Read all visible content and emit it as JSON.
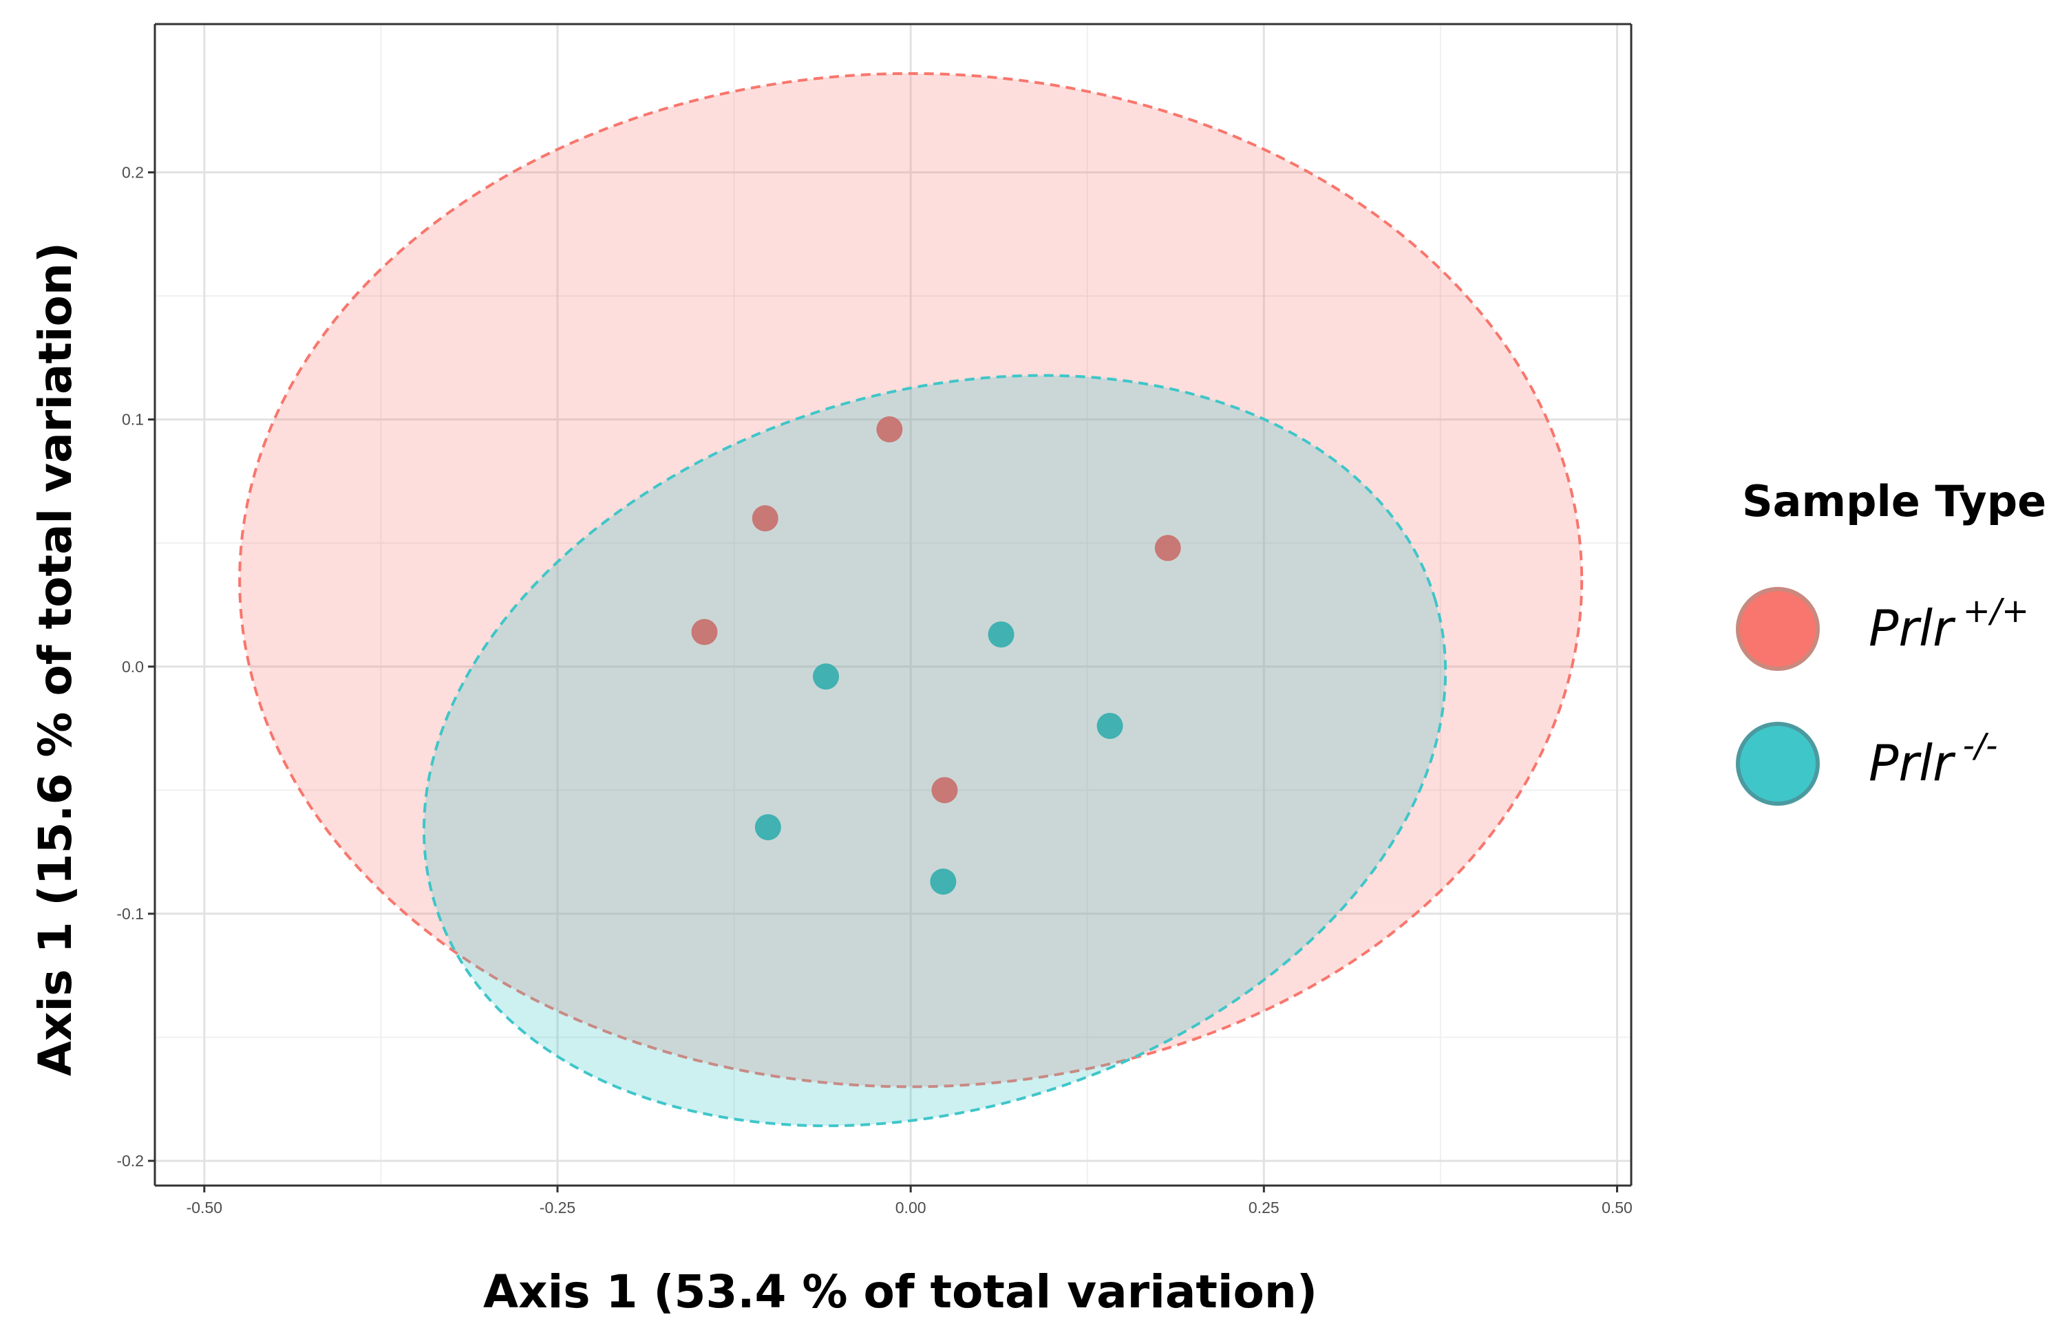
{
  "chart_data": {
    "type": "scatter",
    "xlabel": "Axis 1 (53.4 % of total variation)",
    "ylabel": "Axis 1 (15.6 % of total variation)",
    "xlim": [
      -0.535,
      0.51
    ],
    "ylim": [
      -0.21,
      0.26
    ],
    "x_ticks": [
      -0.5,
      -0.25,
      0.0,
      0.25,
      0.5
    ],
    "x_tick_labels": [
      "-0.50",
      "-0.25",
      "0.00",
      "0.25",
      "0.50"
    ],
    "y_ticks": [
      -0.2,
      -0.1,
      0.0,
      0.1,
      0.2
    ],
    "y_tick_labels": [
      "-0.2",
      "-0.1",
      "0.0",
      "0.1",
      "0.2"
    ],
    "grid": true,
    "legend": {
      "title": "Sample Type",
      "placement": "right",
      "entries": [
        {
          "base": "Prlr",
          "sup": "+/+",
          "color": "#f8766d"
        },
        {
          "base": "Prlr",
          "sup": "-/-",
          "color": "#3fc6c9"
        }
      ]
    },
    "series": [
      {
        "name": "Prlr +/+",
        "color": "#c8706c",
        "ellipse_color": "#f8766d",
        "x": [
          -0.015,
          -0.103,
          -0.146,
          0.182,
          0.024
        ],
        "y": [
          0.096,
          0.06,
          0.014,
          0.048,
          -0.05
        ],
        "ellipse": {
          "cx": 0.0,
          "cy": 0.035,
          "rx": 0.475,
          "ry": 0.205,
          "angle_deg": 0
        }
      },
      {
        "name": "Prlr -/-",
        "color": "#35aeae",
        "ellipse_color": "#3fc6c9",
        "x": [
          0.064,
          -0.06,
          0.141,
          -0.101,
          0.023
        ],
        "y": [
          0.013,
          -0.004,
          -0.024,
          -0.065,
          -0.087
        ],
        "ellipse": {
          "cx": 0.017,
          "cy": -0.034,
          "rx": 0.37,
          "ry": 0.145,
          "angle_deg": 17
        }
      }
    ]
  }
}
